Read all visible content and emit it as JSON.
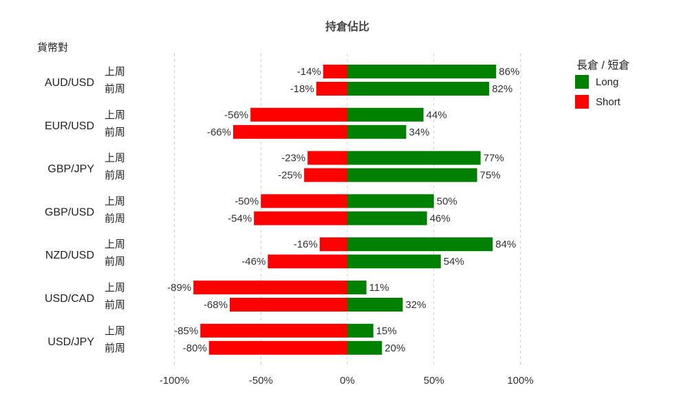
{
  "chart_data": {
    "type": "bar",
    "orientation": "horizontal-diverging",
    "title": "持倉佔比",
    "ylabel": "貨幣對",
    "xlim": [
      -100,
      100
    ],
    "xticks": [
      -100,
      -50,
      0,
      50,
      100
    ],
    "xtick_labels": [
      "-100%",
      "-50%",
      "0%",
      "50%",
      "100%"
    ],
    "grid": "vertical dashed",
    "legend_position": "top-right",
    "legend_title": "長倉 / 短倉",
    "periods": [
      "上周",
      "前周"
    ],
    "series": [
      {
        "name": "Long",
        "color": "#008000"
      },
      {
        "name": "Short",
        "color": "#ff0000"
      }
    ],
    "groups": [
      {
        "pair": "AUD/USD",
        "rows": [
          {
            "period": "上周",
            "long": 86,
            "short": -14,
            "long_label": "86%",
            "short_label": "-14%"
          },
          {
            "period": "前周",
            "long": 82,
            "short": -18,
            "long_label": "82%",
            "short_label": "-18%"
          }
        ]
      },
      {
        "pair": "EUR/USD",
        "rows": [
          {
            "period": "上周",
            "long": 44,
            "short": -56,
            "long_label": "44%",
            "short_label": "-56%"
          },
          {
            "period": "前周",
            "long": 34,
            "short": -66,
            "long_label": "34%",
            "short_label": "-66%"
          }
        ]
      },
      {
        "pair": "GBP/JPY",
        "rows": [
          {
            "period": "上周",
            "long": 77,
            "short": -23,
            "long_label": "77%",
            "short_label": "-23%"
          },
          {
            "period": "前周",
            "long": 75,
            "short": -25,
            "long_label": "75%",
            "short_label": "-25%"
          }
        ]
      },
      {
        "pair": "GBP/USD",
        "rows": [
          {
            "period": "上周",
            "long": 50,
            "short": -50,
            "long_label": "50%",
            "short_label": "-50%"
          },
          {
            "period": "前周",
            "long": 46,
            "short": -54,
            "long_label": "46%",
            "short_label": "-54%"
          }
        ]
      },
      {
        "pair": "NZD/USD",
        "rows": [
          {
            "period": "上周",
            "long": 84,
            "short": -16,
            "long_label": "84%",
            "short_label": "-16%"
          },
          {
            "period": "前周",
            "long": 54,
            "short": -46,
            "long_label": "54%",
            "short_label": "-46%"
          }
        ]
      },
      {
        "pair": "USD/CAD",
        "rows": [
          {
            "period": "上周",
            "long": 11,
            "short": -89,
            "long_label": "11%",
            "short_label": "-89%"
          },
          {
            "period": "前周",
            "long": 32,
            "short": -68,
            "long_label": "32%",
            "short_label": "-68%"
          }
        ]
      },
      {
        "pair": "USD/JPY",
        "rows": [
          {
            "period": "上周",
            "long": 15,
            "short": -85,
            "long_label": "15%",
            "short_label": "-85%"
          },
          {
            "period": "前周",
            "long": 20,
            "short": -80,
            "long_label": "20%",
            "short_label": "-80%"
          }
        ]
      }
    ]
  }
}
